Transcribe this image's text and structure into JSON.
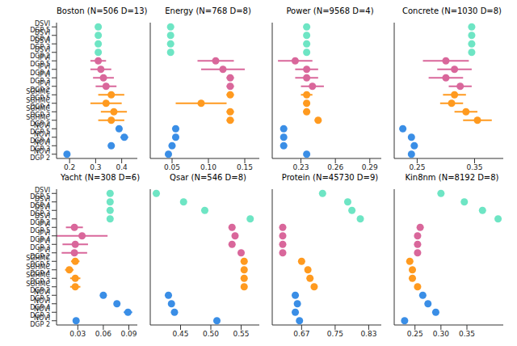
{
  "chart_data": [
    {
      "type": "scatter",
      "title": "Boston (N=506 D=13)",
      "categories": [
        "DSVI DGP 5",
        "DSVI DGP 4",
        "DSVI DGP 3",
        "DSVI DGP 2",
        "IPVI DGP 5",
        "IPVI DGP 4",
        "IPVI DGP 3",
        "IPVI DGP 2",
        "SGHMC DGP 5",
        "SGHMC DGP 4",
        "SGHMC DGP 3",
        "SGHMC DGP 2",
        "NOVI DGP 5",
        "NOVI DGP 4",
        "NOVI DGP 3",
        "NOVI DGP 2"
      ],
      "values": [
        0.31,
        0.31,
        0.31,
        0.31,
        0.31,
        0.32,
        0.33,
        0.34,
        0.36,
        0.34,
        0.37,
        0.36,
        0.39,
        0.41,
        0.36,
        0.19
      ],
      "errors": [
        0,
        0,
        0,
        0,
        0.03,
        0.04,
        0.04,
        0.04,
        0.05,
        0.06,
        0.05,
        0.05,
        0.01,
        0.015,
        0.01,
        0.01
      ],
      "colors": [
        "#6ee5c4",
        "#6ee5c4",
        "#6ee5c4",
        "#6ee5c4",
        "#d9679b",
        "#d9679b",
        "#d9679b",
        "#d9679b",
        "#ff9a1f",
        "#ff9a1f",
        "#ff9a1f",
        "#ff9a1f",
        "#3a8ee6",
        "#3a8ee6",
        "#3a8ee6",
        "#3a8ee6"
      ],
      "xlim": [
        0.15,
        0.46
      ],
      "xticks": [
        0.2,
        0.3,
        0.4
      ]
    },
    {
      "type": "scatter",
      "title": "Energy (N=768 D=8)",
      "categories": [
        "DSVI DGP 5",
        "DSVI DGP 4",
        "DSVI DGP 3",
        "DSVI DGP 2",
        "IPVI DGP 5",
        "IPVI DGP 4",
        "IPVI DGP 3",
        "IPVI DGP 2",
        "SGHMC DGP 5",
        "SGHMC DGP 4",
        "SGHMC DGP 3",
        "SGHMC DGP 2",
        "NOVI DGP 5",
        "NOVI DGP 4",
        "NOVI DGP 3",
        "NOVI DGP 2"
      ],
      "values": [
        0.048,
        0.048,
        0.048,
        0.048,
        0.11,
        0.12,
        0.13,
        0.13,
        0.13,
        0.09,
        0.13,
        0.13,
        0.055,
        0.055,
        0.05,
        0.045
      ],
      "errors": [
        0,
        0,
        0,
        0,
        0.025,
        0.03,
        0.005,
        0.005,
        0.005,
        0.035,
        0.005,
        0.005,
        0.003,
        0.003,
        0.003,
        0.003
      ],
      "colors": [
        "#6ee5c4",
        "#6ee5c4",
        "#6ee5c4",
        "#6ee5c4",
        "#d9679b",
        "#d9679b",
        "#d9679b",
        "#d9679b",
        "#ff9a1f",
        "#ff9a1f",
        "#ff9a1f",
        "#ff9a1f",
        "#3a8ee6",
        "#3a8ee6",
        "#3a8ee6",
        "#3a8ee6"
      ],
      "xlim": [
        0.02,
        0.17
      ],
      "xticks": [
        0.05,
        {
          "value": 0.1,
          "label": "0.10"
        },
        0.15
      ],
      "tick_labels": "x"
    },
    {
      "type": "scatter",
      "title": "Power (N=9568 D=4)",
      "categories": [
        "DSVI DGP 5",
        "DSVI DGP 4",
        "DSVI DGP 3",
        "DSVI DGP 2",
        "IPVI DGP 5",
        "IPVI DGP 4",
        "IPVI DGP 3",
        "IPVI DGP 2",
        "SGHMC DGP 5",
        "SGHMC DGP 4",
        "SGHMC DGP 3",
        "SGHMC DGP 2",
        "NOVI DGP 5",
        "NOVI DGP 4",
        "NOVI DGP 3",
        "NOVI DGP 2"
      ],
      "values": [
        0.235,
        0.235,
        0.235,
        0.235,
        0.225,
        0.235,
        0.235,
        0.24,
        0.235,
        0.235,
        0.235,
        0.245,
        0.215,
        0.215,
        0.215,
        0.235
      ],
      "errors": [
        0,
        0,
        0,
        0,
        0.015,
        0.01,
        0.01,
        0.01,
        0.005,
        0.003,
        0.003,
        0.003,
        0.002,
        0.002,
        0.002,
        0.002
      ],
      "colors": [
        "#6ee5c4",
        "#6ee5c4",
        "#6ee5c4",
        "#6ee5c4",
        "#d9679b",
        "#d9679b",
        "#d9679b",
        "#d9679b",
        "#ff9a1f",
        "#ff9a1f",
        "#ff9a1f",
        "#ff9a1f",
        "#3a8ee6",
        "#3a8ee6",
        "#3a8ee6",
        "#3a8ee6"
      ],
      "xlim": [
        0.205,
        0.3
      ],
      "xticks": [
        0.23,
        0.26,
        0.29
      ],
      "tick_labels": "x"
    },
    {
      "type": "scatter",
      "title": "Concrete (N=1030 D=8)",
      "categories": [
        "DSVI DGP 5",
        "DSVI DGP 4",
        "DSVI DGP 3",
        "DSVI DGP 2",
        "IPVI DGP 5",
        "IPVI DGP 4",
        "IPVI DGP 3",
        "IPVI DGP 2",
        "SGHMC DGP 5",
        "SGHMC DGP 4",
        "SGHMC DGP 3",
        "SGHMC DGP 2",
        "NOVI DGP 5",
        "NOVI DGP 4",
        "NOVI DGP 3",
        "NOVI DGP 2"
      ],
      "values": [
        0.345,
        0.345,
        0.345,
        0.345,
        0.3,
        0.315,
        0.3,
        0.325,
        0.315,
        0.31,
        0.335,
        0.355,
        0.225,
        0.24,
        0.245,
        0.24
      ],
      "errors": [
        0,
        0,
        0,
        0,
        0.04,
        0.03,
        0.03,
        0.02,
        0.02,
        0.02,
        0.02,
        0.025,
        0.003,
        0.003,
        0.003,
        0.003
      ],
      "colors": [
        "#6ee5c4",
        "#6ee5c4",
        "#6ee5c4",
        "#6ee5c4",
        "#d9679b",
        "#d9679b",
        "#d9679b",
        "#d9679b",
        "#ff9a1f",
        "#ff9a1f",
        "#ff9a1f",
        "#ff9a1f",
        "#3a8ee6",
        "#3a8ee6",
        "#3a8ee6",
        "#3a8ee6"
      ],
      "xlim": [
        0.21,
        0.4
      ],
      "xticks": [
        0.25,
        0.35
      ],
      "tick_labels": "x"
    },
    {
      "type": "scatter",
      "title": "Yacht (N=308 D=6)",
      "categories": [
        "DSVI DGP 5",
        "DSVI DGP 4",
        "DSVI DGP 3",
        "DSVI DGP 2",
        "IPVI DGP 5",
        "IPVI DGP 4",
        "IPVI DGP 3",
        "IPVI DGP 2",
        "SGHMC DGP 5",
        "SGHMC DGP 4",
        "SGHMC DGP 3",
        "SGHMC DGP 2",
        "NOVI DGP 5",
        "NOVI DGP 4",
        "NOVI DGP 3",
        "NOVI DGP 2"
      ],
      "values": [
        0.068,
        0.068,
        0.068,
        0.068,
        0.026,
        0.035,
        0.027,
        0.026,
        0.027,
        0.02,
        0.027,
        0.027,
        0.06,
        0.076,
        0.089,
        0.028
      ],
      "errors": [
        0,
        0,
        0,
        0,
        0.01,
        0.03,
        0.015,
        0.015,
        0.005,
        0.005,
        0.006,
        0.006,
        0.002,
        0.002,
        0.005,
        0.002
      ],
      "colors": [
        "#6ee5c4",
        "#6ee5c4",
        "#6ee5c4",
        "#6ee5c4",
        "#d9679b",
        "#d9679b",
        "#d9679b",
        "#d9679b",
        "#ff9a1f",
        "#ff9a1f",
        "#ff9a1f",
        "#ff9a1f",
        "#3a8ee6",
        "#3a8ee6",
        "#3a8ee6",
        "#3a8ee6"
      ],
      "xlim": [
        0.005,
        0.1
      ],
      "xticks": [
        0.03,
        0.06,
        0.09
      ]
    },
    {
      "type": "scatter",
      "title": "Qsar (N=546 D=8)",
      "categories": [
        "DSVI DGP 5",
        "DSVI DGP 4",
        "DSVI DGP 3",
        "DSVI DGP 2",
        "IPVI DGP 5",
        "IPVI DGP 4",
        "IPVI DGP 3",
        "IPVI DGP 2",
        "SGHMC DGP 5",
        "SGHMC DGP 4",
        "SGHMC DGP 3",
        "SGHMC DGP 2",
        "NOVI DGP 5",
        "NOVI DGP 4",
        "NOVI DGP 3",
        "NOVI DGP 2"
      ],
      "values": [
        0.41,
        0.455,
        0.49,
        0.565,
        0.535,
        0.54,
        0.535,
        0.55,
        0.555,
        0.555,
        0.555,
        0.555,
        0.43,
        0.435,
        0.44,
        0.51
      ],
      "errors": [
        0,
        0,
        0,
        0,
        0.004,
        0.004,
        0.004,
        0.004,
        0.003,
        0.003,
        0.003,
        0.003,
        0.003,
        0.003,
        0.003,
        0.003
      ],
      "colors": [
        "#6ee5c4",
        "#6ee5c4",
        "#6ee5c4",
        "#6ee5c4",
        "#d9679b",
        "#d9679b",
        "#d9679b",
        "#d9679b",
        "#ff9a1f",
        "#ff9a1f",
        "#ff9a1f",
        "#ff9a1f",
        "#3a8ee6",
        "#3a8ee6",
        "#3a8ee6",
        "#3a8ee6"
      ],
      "xlim": [
        0.4,
        0.58
      ],
      "xticks": [
        0.45,
        {
          "value": 0.5,
          "label": "0.50"
        },
        0.55
      ],
      "tick_labels": "x"
    },
    {
      "type": "scatter",
      "title": "Protein (N=45730 D=9)",
      "categories": [
        "DSVI DGP 5",
        "DSVI DGP 4",
        "DSVI DGP 3",
        "DSVI DGP 2",
        "IPVI DGP 5",
        "IPVI DGP 4",
        "IPVI DGP 3",
        "IPVI DGP 2",
        "SGHMC DGP 5",
        "SGHMC DGP 4",
        "SGHMC DGP 3",
        "SGHMC DGP 2",
        "NOVI DGP 5",
        "NOVI DGP 4",
        "NOVI DGP 3",
        "NOVI DGP 2"
      ],
      "values": [
        0.72,
        0.78,
        0.79,
        0.81,
        0.625,
        0.625,
        0.625,
        0.625,
        0.67,
        0.685,
        0.69,
        0.7,
        0.655,
        0.66,
        0.655,
        0.665
      ],
      "errors": [
        0,
        0,
        0,
        0,
        0.003,
        0.003,
        0.003,
        0.003,
        0.003,
        0.003,
        0.003,
        0.003,
        0.003,
        0.003,
        0.003,
        0.003
      ],
      "colors": [
        "#6ee5c4",
        "#6ee5c4",
        "#6ee5c4",
        "#6ee5c4",
        "#d9679b",
        "#d9679b",
        "#d9679b",
        "#d9679b",
        "#ff9a1f",
        "#ff9a1f",
        "#ff9a1f",
        "#ff9a1f",
        "#3a8ee6",
        "#3a8ee6",
        "#3a8ee6",
        "#3a8ee6"
      ],
      "xlim": [
        0.6,
        0.86
      ],
      "xticks": [
        0.67,
        0.75,
        0.83
      ],
      "tick_labels": "x"
    },
    {
      "type": "scatter",
      "title": "Kin8nm (N=8192 D=8)",
      "categories": [
        "DSVI DGP 5",
        "DSVI DGP 4",
        "DSVI DGP 3",
        "DSVI DGP 2",
        "IPVI DGP 5",
        "IPVI DGP 4",
        "IPVI DGP 3",
        "IPVI DGP 2",
        "SGHMC DGP 5",
        "SGHMC DGP 4",
        "SGHMC DGP 3",
        "SGHMC DGP 2",
        "NOVI DGP 5",
        "NOVI DGP 4",
        "NOVI DGP 3",
        "NOVI DGP 2"
      ],
      "values": [
        0.3,
        0.345,
        0.38,
        0.41,
        0.26,
        0.255,
        0.255,
        0.255,
        0.24,
        0.245,
        0.245,
        0.255,
        0.265,
        0.275,
        0.29,
        0.23
      ],
      "errors": [
        0,
        0,
        0,
        0,
        0.003,
        0.003,
        0.003,
        0.003,
        0.003,
        0.003,
        0.003,
        0.003,
        0.003,
        0.003,
        0.003,
        0.003
      ],
      "colors": [
        "#6ee5c4",
        "#6ee5c4",
        "#6ee5c4",
        "#6ee5c4",
        "#d9679b",
        "#d9679b",
        "#d9679b",
        "#d9679b",
        "#ff9a1f",
        "#ff9a1f",
        "#ff9a1f",
        "#ff9a1f",
        "#3a8ee6",
        "#3a8ee6",
        "#3a8ee6",
        "#3a8ee6"
      ],
      "xlim": [
        0.21,
        0.42
      ],
      "xticks": [
        0.25,
        {
          "value": 0.3,
          "label": "0.30"
        },
        0.35
      ],
      "tick_labels": "x"
    }
  ]
}
